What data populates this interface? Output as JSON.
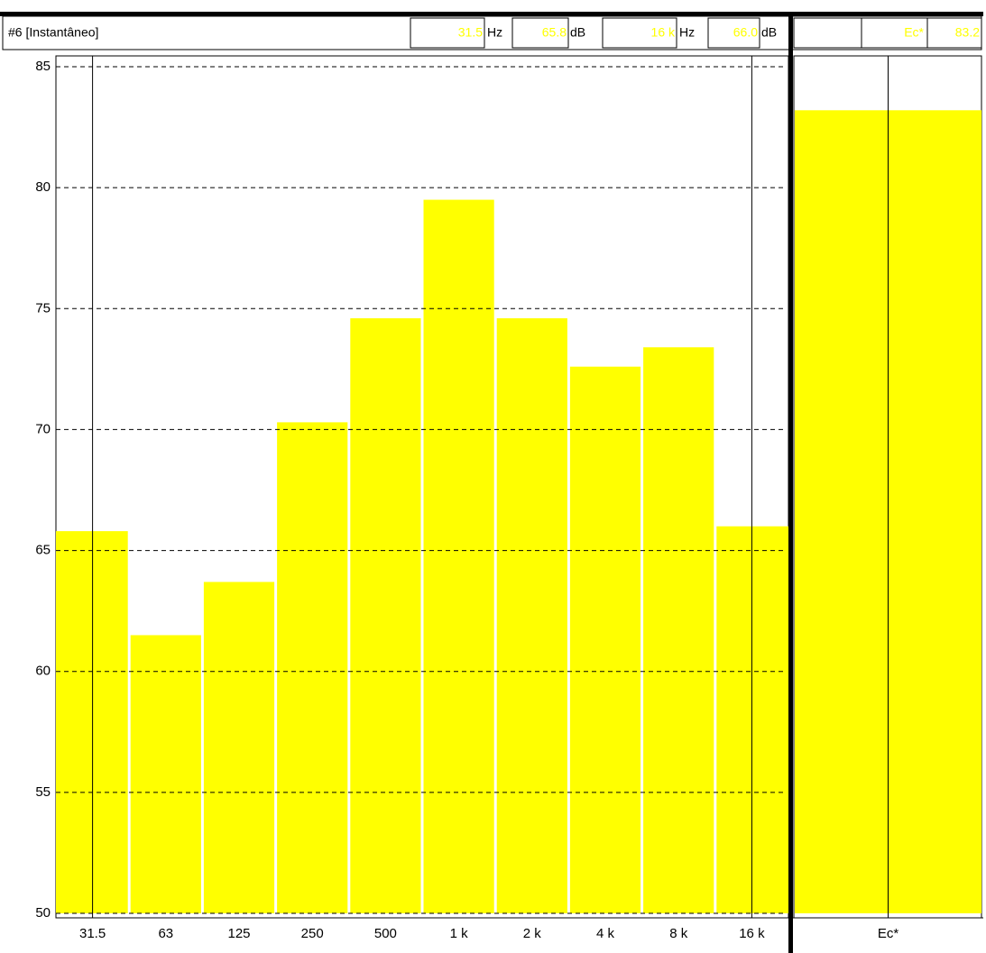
{
  "header": {
    "title": "#6 [Instantâneo]",
    "cursor1": {
      "freq": "31.5",
      "freq_unit": "Hz",
      "level": "65.8",
      "level_unit": "dB"
    },
    "cursor2": {
      "freq": "16 k",
      "freq_unit": "Hz",
      "level": "66.0",
      "level_unit": "dB"
    },
    "side": {
      "name": "Ec*",
      "level": "83.2"
    }
  },
  "chart_data": [
    {
      "type": "bar",
      "categories": [
        "31.5",
        "63",
        "125",
        "250",
        "500",
        "1 k",
        "2 k",
        "4 k",
        "8 k",
        "16 k"
      ],
      "values": [
        65.8,
        61.5,
        63.7,
        70.3,
        74.6,
        79.5,
        74.6,
        72.6,
        73.4,
        66.0
      ],
      "color": "#ffff00",
      "ylim": [
        50,
        85
      ],
      "yticks": [
        50,
        55,
        60,
        65,
        70,
        75,
        80,
        85
      ],
      "grid": true
    },
    {
      "type": "bar",
      "categories": [
        "Ec*"
      ],
      "values": [
        83.2
      ],
      "color": "#ffff00",
      "ylim": [
        50,
        85
      ]
    }
  ]
}
